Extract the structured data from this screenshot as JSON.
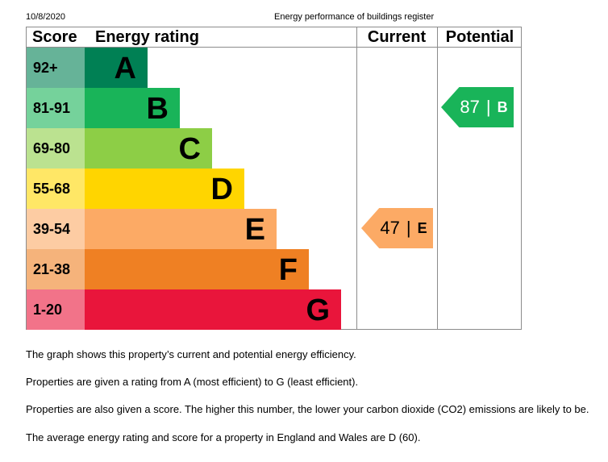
{
  "header": {
    "date": "10/8/2020",
    "title": "Energy performance of buildings register"
  },
  "table": {
    "score_header": "Score",
    "rating_header": "Energy rating",
    "current_header": "Current",
    "potential_header": "Potential",
    "bands": [
      {
        "range": "92+",
        "letter": "A",
        "color": "#008054",
        "score_bg": "#66b398"
      },
      {
        "range": "81-91",
        "letter": "B",
        "color": "#19b459",
        "score_bg": "#75d29b"
      },
      {
        "range": "69-80",
        "letter": "C",
        "color": "#8dce46",
        "score_bg": "#bbe290"
      },
      {
        "range": "55-68",
        "letter": "D",
        "color": "#ffd500",
        "score_bg": "#ffe766"
      },
      {
        "range": "39-54",
        "letter": "E",
        "color": "#fcaa65",
        "score_bg": "#fdcca3"
      },
      {
        "range": "21-38",
        "letter": "F",
        "color": "#ef8023",
        "score_bg": "#f5b37b"
      },
      {
        "range": "1-20",
        "letter": "G",
        "color": "#e9153b",
        "score_bg": "#f27389"
      }
    ],
    "current": {
      "score": "47",
      "separator": "|",
      "letter": "E"
    },
    "potential": {
      "score": "87",
      "separator": "|",
      "letter": "B"
    }
  },
  "paragraphs": [
    "The graph shows this property’s current and potential energy efficiency.",
    "Properties are given a rating from A (most efficient) to G (least efficient).",
    "Properties are also given a score. The higher this number, the lower your carbon dioxide (CO2) emissions are likely to be.",
    "The average energy rating and score for a property in England and Wales are D (60)."
  ]
}
